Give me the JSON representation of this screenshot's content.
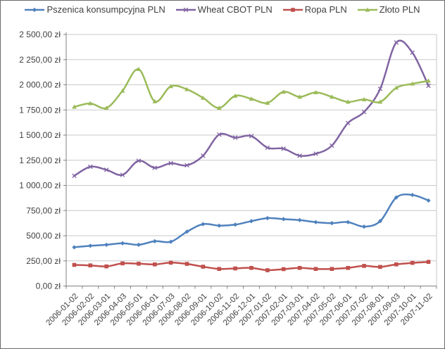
{
  "chart_data": {
    "type": "line",
    "legend_position": "top",
    "grid": true,
    "currency_suffix": "zł",
    "x_axis": {
      "categories": [
        "2006-01-02",
        "2006-02-02",
        "2006-03-01",
        "2006-04-03",
        "2006-05-01",
        "2006-06-01",
        "2006-07-03",
        "2006-08-02",
        "2006-09-01",
        "2006-10-02",
        "2006-11-02",
        "2006-12-01",
        "2007-01-02",
        "2007-02-01",
        "2007-03-01",
        "2007-04-02",
        "2007-05-02",
        "2007-06-01",
        "2007-07-02",
        "2007-08-01",
        "2007-09-03",
        "2007-10-01",
        "2007-11-02"
      ]
    },
    "y_axis": {
      "min": 0,
      "max": 2500,
      "step": 250,
      "tick_labels": [
        "0,00 zł",
        "250,00 zł",
        "500,00 zł",
        "750,00 zł",
        "1 000,00 zł",
        "1 250,00 zł",
        "1 500,00 zł",
        "1 750,00 zł",
        "2 000,00 zł",
        "2 250,00 zł",
        "2 500,00 zł"
      ]
    },
    "series": [
      {
        "name": "Pszenica konsumpcyjna PLN",
        "color": "#4F81BD",
        "marker": "diamond",
        "values": [
          385,
          400,
          410,
          425,
          410,
          445,
          440,
          540,
          615,
          600,
          610,
          645,
          675,
          665,
          655,
          635,
          625,
          635,
          590,
          645,
          880,
          905,
          850
        ]
      },
      {
        "name": "Wheat CBOT PLN",
        "color": "#8064A2",
        "marker": "x",
        "values": [
          1095,
          1185,
          1155,
          1105,
          1245,
          1175,
          1220,
          1200,
          1295,
          1505,
          1475,
          1490,
          1375,
          1365,
          1295,
          1315,
          1395,
          1620,
          1730,
          1960,
          2420,
          2320,
          1990
        ]
      },
      {
        "name": "Ropa PLN",
        "color": "#C0504D",
        "marker": "square",
        "values": [
          210,
          205,
          195,
          225,
          222,
          215,
          232,
          220,
          192,
          170,
          175,
          180,
          157,
          168,
          180,
          170,
          170,
          180,
          200,
          190,
          215,
          230,
          240
        ]
      },
      {
        "name": "Złoto PLN",
        "color": "#9BBB59",
        "marker": "triangle",
        "values": [
          1780,
          1815,
          1770,
          1940,
          2155,
          1835,
          1985,
          1955,
          1870,
          1770,
          1890,
          1860,
          1820,
          1930,
          1880,
          1925,
          1880,
          1830,
          1855,
          1830,
          1970,
          2010,
          2040
        ]
      }
    ],
    "style": {
      "gridline_color": "#C9C9C9",
      "axis_color": "#808080",
      "label_color": "#3f3f3f"
    }
  }
}
